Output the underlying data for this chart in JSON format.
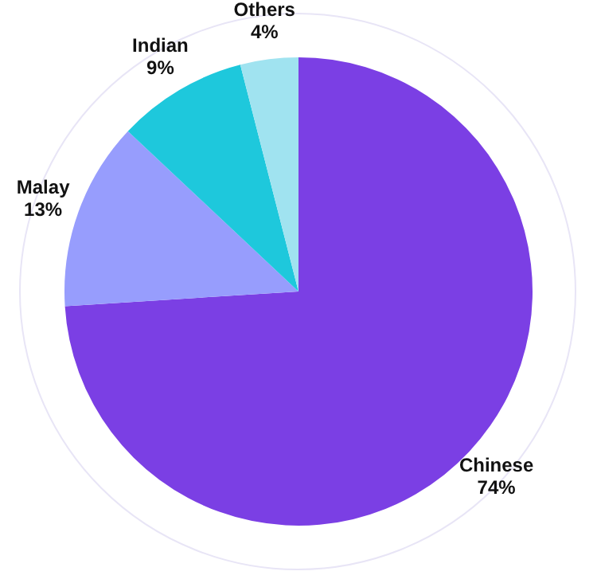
{
  "chart_data": {
    "type": "pie",
    "categories": [
      "Chinese",
      "Malay",
      "Indian",
      "Others"
    ],
    "values": [
      74,
      13,
      9,
      4
    ],
    "colors": [
      "#7b3fe4",
      "#979dfd",
      "#1ec8dc",
      "#a0e3f0"
    ],
    "value_labels": [
      "74%",
      "13%",
      "9%",
      "4%"
    ],
    "legend": false
  }
}
